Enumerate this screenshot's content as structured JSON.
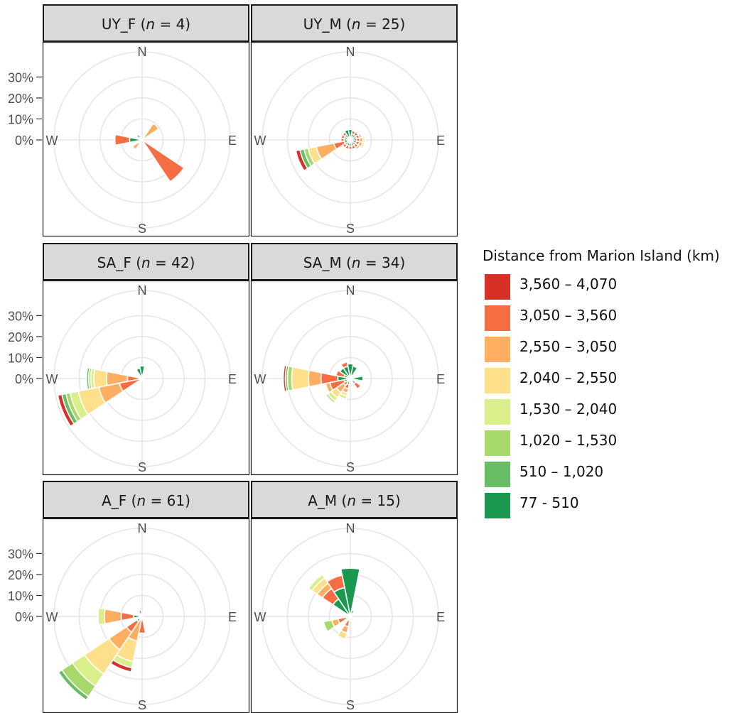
{
  "chart_data": {
    "type": "polar-stacked-bar",
    "compass_labels": [
      "N",
      "E",
      "S",
      "W"
    ],
    "radial_tick_labels": [
      "0%",
      "10%",
      "20%",
      "30%"
    ],
    "radial_ticks": [
      0,
      10,
      20,
      30
    ],
    "radial_max": 42,
    "legend": {
      "title": "Distance from Marion Island (km)",
      "items": [
        {
          "label": "3,560 – 4,070",
          "color": "#d73027"
        },
        {
          "label": "3,050 – 3,560",
          "color": "#f46d43"
        },
        {
          "label": "2,550 – 3,050",
          "color": "#fdae61"
        },
        {
          "label": "2,040 – 2,550",
          "color": "#fee08b"
        },
        {
          "label": "1,530 – 2,040",
          "color": "#d9ef8b"
        },
        {
          "label": "1,020 – 1,530",
          "color": "#a6d96a"
        },
        {
          "label": "510 – 1,020",
          "color": "#66bd63"
        },
        {
          "label": "77 - 510",
          "color": "#1a9850"
        }
      ]
    },
    "sector_width_deg": 22.5,
    "segment_note": "segments listed innermost first; class index 0 = 77-510 ... 7 = 3,560-4,070",
    "panels": [
      {
        "id": "UY_F",
        "label": "UY_F",
        "n": "4",
        "sectors": [
          {
            "dir": 45,
            "segments": [
              [
                5,
                9.5
              ]
            ]
          },
          {
            "dir": 135,
            "segments": [
              [
                6,
                24
              ]
            ]
          },
          {
            "dir": 225,
            "segments": [
              [
                6,
                2
              ],
              [
                5,
                3.5
              ]
            ]
          },
          {
            "dir": 270,
            "segments": [
              [
                0,
                6
              ],
              [
                6,
                7
              ]
            ]
          },
          {
            "dir": 315,
            "segments": [
              [
                0,
                3
              ]
            ]
          },
          {
            "dir": 337.5,
            "segments": [
              [
                0,
                2
              ]
            ]
          }
        ]
      },
      {
        "id": "UY_M",
        "label": "UY_M",
        "n": "25",
        "sectors": [
          {
            "dir": 0,
            "segments": [
              [
                0,
                5
              ]
            ]
          },
          {
            "dir": 22.5,
            "segments": [
              [
                0,
                3
              ],
              [
                6,
                1.5
              ]
            ]
          },
          {
            "dir": 45,
            "segments": [
              [
                0,
                3
              ],
              [
                6,
                1.5
              ]
            ]
          },
          {
            "dir": 67.5,
            "segments": [
              [
                0,
                3
              ],
              [
                6,
                1.5
              ],
              [
                5,
                1
              ]
            ]
          },
          {
            "dir": 90,
            "segments": [
              [
                0,
                3
              ],
              [
                6,
                1.5
              ],
              [
                5,
                1.5
              ],
              [
                4,
                1
              ]
            ]
          },
          {
            "dir": 112.5,
            "segments": [
              [
                0,
                3
              ],
              [
                6,
                1.5
              ],
              [
                5,
                1.5
              ],
              [
                4,
                1
              ]
            ]
          },
          {
            "dir": 135,
            "segments": [
              [
                0,
                3
              ],
              [
                6,
                1.5
              ],
              [
                5,
                1
              ]
            ]
          },
          {
            "dir": 157.5,
            "segments": [
              [
                0,
                3
              ],
              [
                6,
                1.5
              ]
            ]
          },
          {
            "dir": 180,
            "segments": [
              [
                0,
                3
              ],
              [
                6,
                1.5
              ]
            ]
          },
          {
            "dir": 202.5,
            "segments": [
              [
                0,
                3
              ],
              [
                6,
                1.5
              ]
            ]
          },
          {
            "dir": 225,
            "segments": [
              [
                0,
                3
              ],
              [
                6,
                1.5
              ]
            ]
          },
          {
            "dir": 247.5,
            "segments": [
              [
                0,
                3
              ],
              [
                6,
                5
              ],
              [
                5,
                8.5
              ],
              [
                4,
                4
              ],
              [
                2,
                2
              ],
              [
                1,
                2
              ],
              [
                7,
                2
              ]
            ]
          },
          {
            "dir": 270,
            "segments": [
              [
                0,
                3
              ],
              [
                6,
                1.5
              ]
            ]
          },
          {
            "dir": 292.5,
            "segments": [
              [
                0,
                3
              ],
              [
                6,
                1.5
              ]
            ]
          },
          {
            "dir": 315,
            "segments": [
              [
                0,
                3
              ],
              [
                6,
                1.5
              ]
            ]
          },
          {
            "dir": 337.5,
            "segments": [
              [
                0,
                5
              ]
            ]
          }
        ]
      },
      {
        "id": "SA_F",
        "label": "SA_F",
        "n": "42",
        "sectors": [
          {
            "dir": 0,
            "segments": [
              [
                0,
                6
              ]
            ]
          },
          {
            "dir": 22.5,
            "segments": [
              [
                0,
                2
              ]
            ]
          },
          {
            "dir": 67.5,
            "segments": [
              [
                0,
                1
              ]
            ]
          },
          {
            "dir": 112.5,
            "segments": [
              [
                6,
                1
              ]
            ]
          },
          {
            "dir": 180,
            "segments": [
              [
                6,
                1
              ]
            ]
          },
          {
            "dir": 202.5,
            "segments": [
              [
                6,
                1.5
              ]
            ]
          },
          {
            "dir": 247.5,
            "segments": [
              [
                0,
                1
              ],
              [
                6,
                10
              ],
              [
                5,
                10
              ],
              [
                4,
                10
              ],
              [
                3,
                4
              ],
              [
                2,
                2
              ],
              [
                1,
                2
              ],
              [
                7,
                2
              ]
            ]
          },
          {
            "dir": 270,
            "segments": [
              [
                6,
                7
              ],
              [
                5,
                10
              ],
              [
                4,
                6
              ],
              [
                3,
                1.5
              ],
              [
                2,
                1
              ],
              [
                1,
                1
              ]
            ]
          },
          {
            "dir": 292.5,
            "segments": [
              [
                6,
                1.5
              ]
            ]
          },
          {
            "dir": 337.5,
            "segments": [
              [
                0,
                5
              ]
            ]
          }
        ]
      },
      {
        "id": "SA_M",
        "label": "SA_M",
        "n": "34",
        "sectors": [
          {
            "dir": 0,
            "segments": [
              [
                0,
                7
              ]
            ]
          },
          {
            "dir": 22.5,
            "segments": [
              [
                0,
                6
              ]
            ]
          },
          {
            "dir": 45,
            "segments": [
              [
                0,
                2
              ]
            ]
          },
          {
            "dir": 67.5,
            "segments": [
              [
                0,
                1
              ]
            ]
          },
          {
            "dir": 90,
            "segments": [
              [
                0,
                6
              ]
            ]
          },
          {
            "dir": 112.5,
            "segments": [
              [
                0,
                2
              ]
            ]
          },
          {
            "dir": 135,
            "segments": [
              [
                0,
                3
              ],
              [
                6,
                3
              ]
            ]
          },
          {
            "dir": 157.5,
            "segments": [
              [
                0,
                2
              ]
            ]
          },
          {
            "dir": 180,
            "segments": [
              [
                0,
                1
              ]
            ]
          },
          {
            "dir": 202.5,
            "segments": [
              [
                0,
                3
              ],
              [
                6,
                2
              ],
              [
                5,
                2
              ],
              [
                4,
                1.5
              ],
              [
                3,
                1.5
              ]
            ]
          },
          {
            "dir": 225,
            "segments": [
              [
                0,
                2
              ],
              [
                6,
                2
              ],
              [
                5,
                4
              ],
              [
                4,
                3
              ],
              [
                3,
                2
              ],
              [
                2,
                1
              ]
            ]
          },
          {
            "dir": 247.5,
            "segments": [
              [
                0,
                3
              ],
              [
                6,
                7
              ],
              [
                5,
                2
              ]
            ]
          },
          {
            "dir": 270,
            "segments": [
              [
                0,
                6
              ],
              [
                6,
                8
              ],
              [
                5,
                6
              ],
              [
                4,
                8
              ],
              [
                2,
                2
              ],
              [
                1,
                1
              ],
              [
                7,
                1
              ]
            ]
          },
          {
            "dir": 292.5,
            "segments": [
              [
                0,
                3
              ],
              [
                6,
                4
              ]
            ]
          },
          {
            "dir": 315,
            "segments": [
              [
                0,
                6
              ]
            ]
          },
          {
            "dir": 337.5,
            "segments": [
              [
                0,
                6
              ],
              [
                6,
                2
              ]
            ]
          }
        ]
      },
      {
        "id": "A_F",
        "label": "A_F",
        "n": "61",
        "sectors": [
          {
            "dir": 0,
            "segments": [
              [
                0,
                2
              ]
            ]
          },
          {
            "dir": 22.5,
            "segments": [
              [
                0,
                1
              ]
            ]
          },
          {
            "dir": 180,
            "segments": [
              [
                6,
                8
              ]
            ]
          },
          {
            "dir": 202.5,
            "segments": [
              [
                6,
                2
              ],
              [
                5,
                10
              ],
              [
                4,
                10
              ],
              [
                3,
                3
              ],
              [
                7,
                2
              ]
            ]
          },
          {
            "dir": 225,
            "segments": [
              [
                0,
                3
              ],
              [
                6,
                6
              ],
              [
                5,
                10
              ],
              [
                4,
                14
              ],
              [
                3,
                7
              ],
              [
                2,
                6
              ],
              [
                1,
                2
              ]
            ]
          },
          {
            "dir": 270,
            "segments": [
              [
                0,
                4
              ],
              [
                6,
                6
              ],
              [
                5,
                8
              ],
              [
                3,
                3
              ]
            ]
          },
          {
            "dir": 337.5,
            "segments": [
              [
                0,
                3
              ]
            ]
          }
        ]
      },
      {
        "id": "A_M",
        "label": "A_M",
        "n": "15",
        "sectors": [
          {
            "dir": 0,
            "segments": [
              [
                0,
                23
              ]
            ]
          },
          {
            "dir": 22.5,
            "segments": [
              [
                0,
                3
              ]
            ]
          },
          {
            "dir": 112.5,
            "segments": [
              [
                0,
                1
              ]
            ]
          },
          {
            "dir": 135,
            "segments": [
              [
                0,
                1
              ]
            ]
          },
          {
            "dir": 157.5,
            "segments": [
              [
                0,
                2
              ]
            ]
          },
          {
            "dir": 202.5,
            "segments": [
              [
                0,
                2
              ],
              [
                6,
                3
              ],
              [
                5,
                3
              ],
              [
                4,
                3
              ]
            ]
          },
          {
            "dir": 247.5,
            "segments": [
              [
                0,
                2
              ],
              [
                6,
                4
              ],
              [
                5,
                3
              ],
              [
                2,
                4
              ]
            ]
          },
          {
            "dir": 315,
            "segments": [
              [
                0,
                10
              ],
              [
                6,
                6
              ],
              [
                5,
                3
              ],
              [
                4,
                3
              ],
              [
                3,
                2
              ]
            ]
          },
          {
            "dir": 337.5,
            "segments": [
              [
                0,
                14
              ],
              [
                6,
                6
              ]
            ]
          }
        ]
      }
    ]
  }
}
